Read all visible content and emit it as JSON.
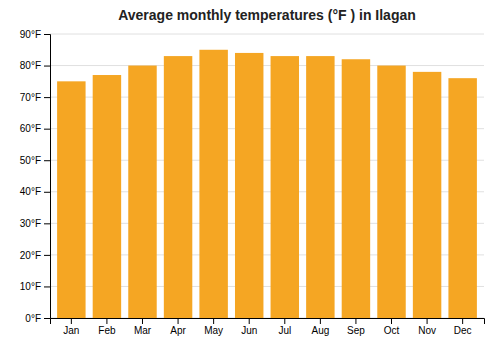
{
  "chart_data": {
    "type": "bar",
    "title": "Average monthly temperatures (°F ) in Ilagan",
    "categories": [
      "Jan",
      "Feb",
      "Mar",
      "Apr",
      "May",
      "Jun",
      "Jul",
      "Aug",
      "Sep",
      "Oct",
      "Nov",
      "Dec"
    ],
    "values": [
      75,
      77,
      80,
      83,
      85,
      84,
      83,
      83,
      82,
      80,
      78,
      76
    ],
    "color": "#F5A623",
    "ylim": [
      0,
      90
    ],
    "yticks": [
      {
        "value": 0,
        "label": "0°F"
      },
      {
        "value": 10,
        "label": "10°F"
      },
      {
        "value": 20,
        "label": "20°F"
      },
      {
        "value": 30,
        "label": "30°F"
      },
      {
        "value": 40,
        "label": "40°F"
      },
      {
        "value": 50,
        "label": "50°F"
      },
      {
        "value": 60,
        "label": "60°F"
      },
      {
        "value": 70,
        "label": "70°F"
      },
      {
        "value": 80,
        "label": "80°F"
      },
      {
        "value": 90,
        "label": "90°F"
      }
    ],
    "grid": true
  }
}
